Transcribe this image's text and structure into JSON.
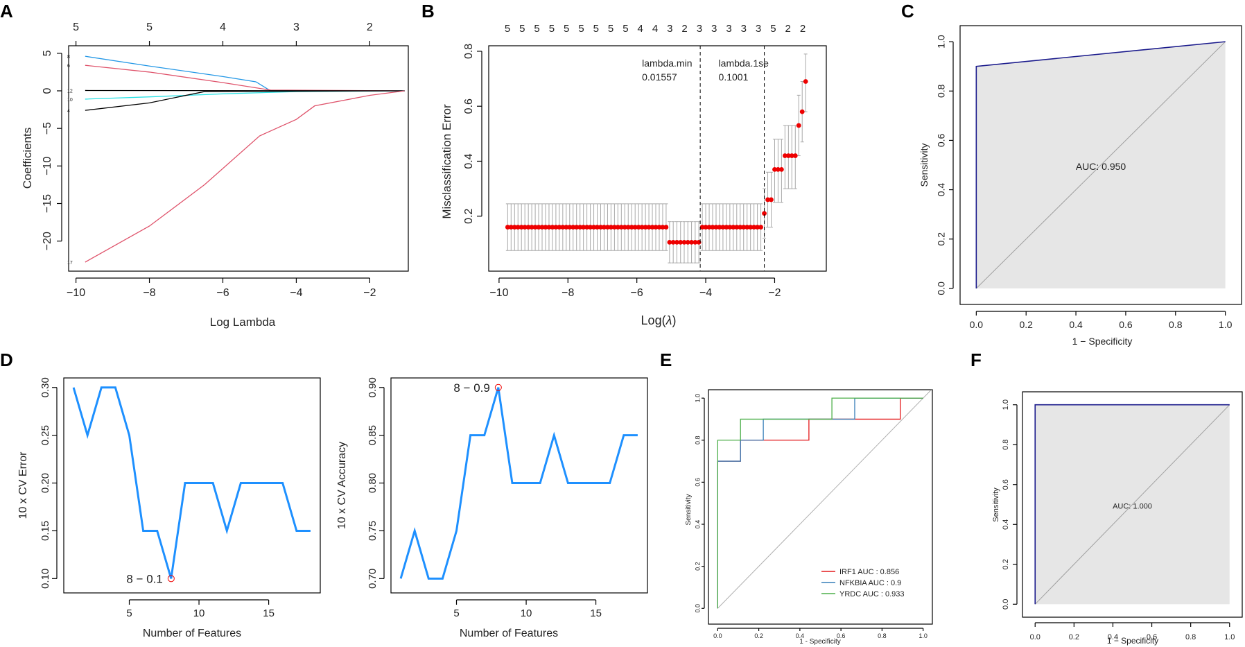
{
  "panels": {
    "A": "A",
    "B": "B",
    "C": "C",
    "D": "D",
    "E": "E",
    "F": "F"
  },
  "colors": {
    "red": "#ee0000",
    "blue": "#1e90ff",
    "roc_blue": "#1a1a8c",
    "roc_fill": "#e6e6e6",
    "grey": "#a0a0a0",
    "irf1": "#e41a1c",
    "nfkbia": "#377eb8",
    "yrdc": "#4daf4a",
    "lasso_pink": "#df536b",
    "lasso_blue": "#2297e6",
    "lasso_cyan": "#28e2e5"
  },
  "chart_data": [
    {
      "id": "A",
      "type": "line",
      "title": "",
      "xlabel": "Log Lambda",
      "ylabel": "Coefficients",
      "xlim": [
        -10.2,
        -0.95
      ],
      "ylim": [
        -24,
        6
      ],
      "xticks": [
        -10,
        -8,
        -6,
        -4,
        -2
      ],
      "yticks": [
        5,
        0,
        -5,
        -10,
        -15,
        -20
      ],
      "top_axis": {
        "positions": [
          -10,
          -8,
          -6,
          -4,
          -2
        ],
        "labels": [
          "5",
          "5",
          "4",
          "3",
          "2"
        ]
      },
      "series": [
        {
          "name": "8",
          "color": "#2297e6",
          "x": [
            -9.75,
            -8,
            -6,
            -5.1,
            -4.7,
            -1.05
          ],
          "y": [
            4.6,
            3.3,
            1.9,
            1.2,
            0.0,
            0.0
          ]
        },
        {
          "name": "6",
          "color": "#df536b",
          "x": [
            -9.75,
            -8,
            -6,
            -4.7,
            -1.05
          ],
          "y": [
            3.4,
            2.5,
            1.1,
            0.1,
            0.0
          ]
        },
        {
          "name": "12",
          "color": "#000000",
          "x": [
            -9.75,
            -1.05
          ],
          "y": [
            0.05,
            0.0
          ]
        },
        {
          "name": "10",
          "color": "#28e2e5",
          "x": [
            -9.75,
            -8,
            -6,
            -4,
            -1.05
          ],
          "y": [
            -1.1,
            -0.8,
            -0.4,
            -0.1,
            0.0
          ]
        },
        {
          "name": "4",
          "color": "#000000",
          "x": [
            -9.75,
            -8,
            -6.5,
            -1.05
          ],
          "y": [
            -2.6,
            -1.6,
            -0.1,
            0.0
          ]
        },
        {
          "name": "17",
          "color": "#df536b",
          "x": [
            -9.75,
            -8,
            -6.5,
            -5,
            -4,
            -3.5,
            -2,
            -1.05
          ],
          "y": [
            -22.8,
            -18,
            -12.5,
            -6,
            -3.8,
            -2,
            -0.6,
            0.0
          ]
        }
      ]
    },
    {
      "id": "B",
      "type": "scatter",
      "title": "",
      "xlabel": "Log(",
      "xlabel_symbol": "λ",
      "xlabel_close": ")",
      "ylabel": "Misclassification Error",
      "xlim": [
        -10.3,
        -0.5
      ],
      "ylim": [
        0,
        0.82
      ],
      "xticks": [
        -10,
        -8,
        -6,
        -4,
        -2
      ],
      "yticks": [
        0.2,
        0.4,
        0.6,
        0.8
      ],
      "top_labels": [
        "5",
        "5",
        "5",
        "5",
        "5",
        "5",
        "5",
        "5",
        "5",
        "4",
        "4",
        "3",
        "2",
        "3",
        "3",
        "3",
        "3",
        "3",
        "5",
        "2",
        "2"
      ],
      "vlines": [
        {
          "x": -4.16,
          "label": "lambda.min",
          "value": "0.01557"
        },
        {
          "x": -2.3,
          "label": "lambda.1se",
          "value": "0.1001"
        }
      ],
      "segments": [
        {
          "x0": -9.75,
          "x1": -5.15,
          "y": 0.16,
          "lo": 0.075,
          "hi": 0.245
        },
        {
          "x0": -5.05,
          "x1": -4.2,
          "y": 0.105,
          "lo": 0.03,
          "hi": 0.18
        },
        {
          "x0": -4.1,
          "x1": -2.4,
          "y": 0.16,
          "lo": 0.075,
          "hi": 0.245
        }
      ],
      "tail": [
        [
          -2.3,
          0.21,
          0.12,
          0.3
        ],
        [
          -2.2,
          0.26,
          0.16,
          0.36
        ],
        [
          -2.1,
          0.26,
          0.16,
          0.36
        ],
        [
          -2.0,
          0.37,
          0.25,
          0.48
        ],
        [
          -1.9,
          0.37,
          0.25,
          0.48
        ],
        [
          -1.8,
          0.37,
          0.25,
          0.48
        ],
        [
          -1.7,
          0.42,
          0.3,
          0.53
        ],
        [
          -1.6,
          0.42,
          0.3,
          0.53
        ],
        [
          -1.5,
          0.42,
          0.3,
          0.53
        ],
        [
          -1.4,
          0.42,
          0.3,
          0.53
        ],
        [
          -1.3,
          0.53,
          0.42,
          0.64
        ],
        [
          -1.2,
          0.58,
          0.47,
          0.69
        ],
        [
          -1.1,
          0.69,
          0.58,
          0.79
        ]
      ]
    },
    {
      "id": "C",
      "type": "roc",
      "xlabel": "1 − Specificity",
      "ylabel": "Sensitivity",
      "auc_label": "AUC: 0.950",
      "x": [
        0,
        0,
        1
      ],
      "y": [
        0,
        0.9,
        1
      ],
      "ticks": [
        "0.0",
        "0.2",
        "0.4",
        "0.6",
        "0.8",
        "1.0"
      ]
    },
    {
      "id": "D1",
      "type": "line",
      "xlabel": "Number of Features",
      "ylabel": "10 x CV Error",
      "xlim": [
        0.3,
        18.7
      ],
      "ylim": [
        0.085,
        0.31
      ],
      "xticks": [
        5,
        10,
        15
      ],
      "yticks": [
        0.1,
        0.15,
        0.2,
        0.25,
        0.3
      ],
      "ytick_labels": [
        "0.10",
        "0.15",
        "0.20",
        "0.25",
        "0.30"
      ],
      "x": [
        1,
        2,
        3,
        4,
        5,
        6,
        7,
        8,
        9,
        10,
        11,
        12,
        13,
        14,
        15,
        16,
        17,
        18
      ],
      "y": [
        0.3,
        0.25,
        0.3,
        0.3,
        0.25,
        0.15,
        0.15,
        0.1,
        0.2,
        0.2,
        0.2,
        0.15,
        0.2,
        0.2,
        0.2,
        0.2,
        0.15,
        0.15
      ],
      "annotation": "8 − 0.1",
      "best_x": 8
    },
    {
      "id": "D2",
      "type": "line",
      "xlabel": "Number of Features",
      "ylabel": "10 x CV Accuracy",
      "xlim": [
        0.3,
        18.7
      ],
      "ylim": [
        0.685,
        0.91
      ],
      "xticks": [
        5,
        10,
        15
      ],
      "yticks": [
        0.7,
        0.75,
        0.8,
        0.85,
        0.9
      ],
      "ytick_labels": [
        "0.70",
        "0.75",
        "0.80",
        "0.85",
        "0.90"
      ],
      "x": [
        1,
        2,
        3,
        4,
        5,
        6,
        7,
        8,
        9,
        10,
        11,
        12,
        13,
        14,
        15,
        16,
        17,
        18
      ],
      "y": [
        0.7,
        0.75,
        0.7,
        0.7,
        0.75,
        0.85,
        0.85,
        0.9,
        0.8,
        0.8,
        0.8,
        0.85,
        0.8,
        0.8,
        0.8,
        0.8,
        0.85,
        0.85
      ],
      "annotation": "8 − 0.9",
      "best_x": 8
    },
    {
      "id": "E",
      "type": "roc",
      "xlabel": "1 - Specificity",
      "ylabel": "Sensitivity",
      "ticks": [
        "0.0",
        "0.2",
        "0.4",
        "0.6",
        "0.8",
        "1.0"
      ],
      "series": [
        {
          "name": "IRF1 AUC : 0.856",
          "color": "#e41a1c",
          "x": [
            0,
            0,
            0.111,
            0.111,
            0.222,
            0.222,
            0.444,
            0.444,
            0.667,
            0.667,
            0.889,
            0.889,
            1
          ],
          "y": [
            0,
            0.7,
            0.7,
            0.8,
            0.8,
            0.8,
            0.8,
            0.9,
            0.9,
            0.9,
            0.9,
            1,
            1
          ]
        },
        {
          "name": "NFKBIA AUC : 0.9",
          "color": "#377eb8",
          "x": [
            0,
            0,
            0.111,
            0.111,
            0.222,
            0.222,
            0.556,
            0.556,
            0.667,
            0.667,
            1
          ],
          "y": [
            0,
            0.7,
            0.7,
            0.8,
            0.8,
            0.9,
            0.9,
            0.9,
            0.9,
            1,
            1
          ]
        },
        {
          "name": "YRDC AUC : 0.933",
          "color": "#4daf4a",
          "x": [
            0,
            0,
            0.111,
            0.111,
            0.556,
            0.556,
            1
          ],
          "y": [
            0,
            0.8,
            0.8,
            0.9,
            0.9,
            1,
            1
          ]
        }
      ]
    },
    {
      "id": "F",
      "type": "roc",
      "xlabel": "1 − Specificity",
      "ylabel": "Sensitivity",
      "auc_label": "AUC: 1.000",
      "x": [
        0,
        0,
        1
      ],
      "y": [
        0,
        1,
        1
      ],
      "ticks": [
        "0.0",
        "0.2",
        "0.4",
        "0.6",
        "0.8",
        "1.0"
      ]
    }
  ]
}
